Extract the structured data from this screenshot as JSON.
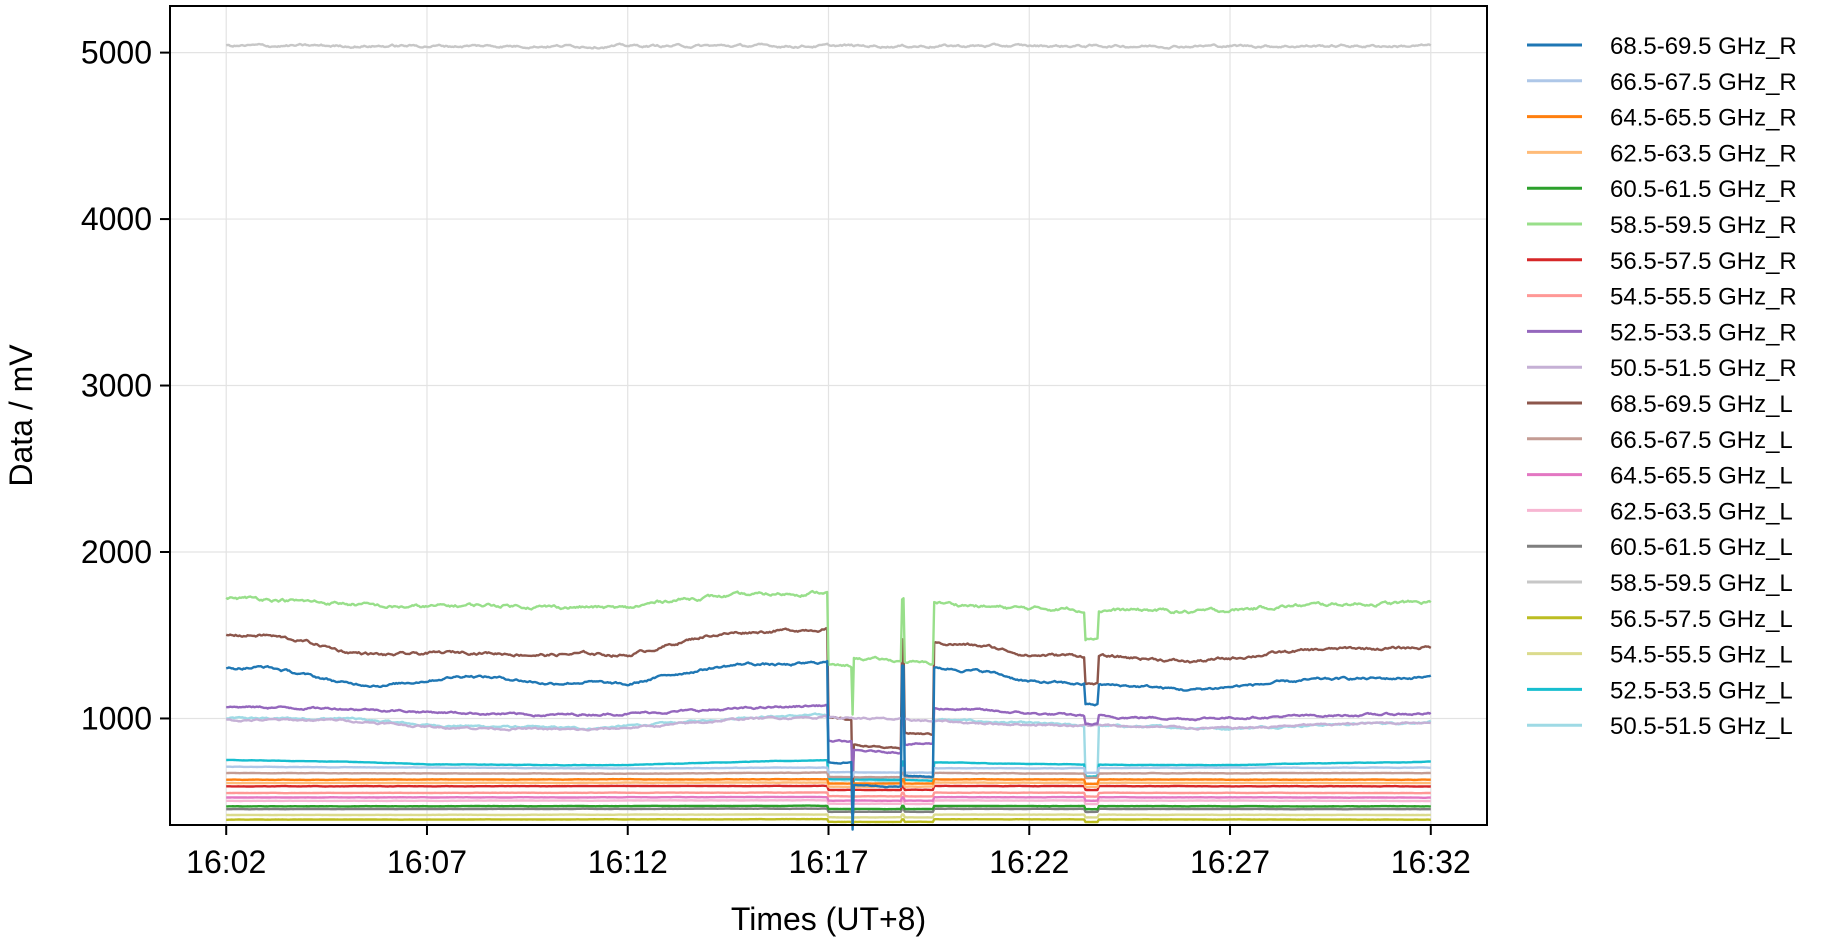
{
  "chart_data": {
    "type": "line",
    "xlabel": "Times (UT+8)",
    "ylabel": "Data / mV",
    "xlim_minutes": [
      -1.4,
      31.4
    ],
    "ylim": [
      360,
      5280
    ],
    "x_ticks": [
      {
        "label": "16:02",
        "minute": 0
      },
      {
        "label": "16:07",
        "minute": 5
      },
      {
        "label": "16:12",
        "minute": 10
      },
      {
        "label": "16:17",
        "minute": 15
      },
      {
        "label": "16:22",
        "minute": 20
      },
      {
        "label": "16:27",
        "minute": 25
      },
      {
        "label": "16:32",
        "minute": 30
      }
    ],
    "y_ticks": [
      1000,
      2000,
      3000,
      4000,
      5000
    ],
    "grid": true,
    "legend_position": "outside-right",
    "series": [
      {
        "name": "68.5-69.5 GHz_R",
        "color": "#1f77b4",
        "base": 1250,
        "dips": [
          0.55,
          0.45,
          0.5,
          0.9
        ],
        "points": [
          [
            0,
            1300
          ],
          [
            1,
            1310
          ],
          [
            2,
            1260
          ],
          [
            3,
            1210
          ],
          [
            4,
            1200
          ],
          [
            5,
            1230
          ],
          [
            6,
            1260
          ],
          [
            7,
            1240
          ],
          [
            8,
            1210
          ],
          [
            9,
            1220
          ],
          [
            10,
            1200
          ],
          [
            11,
            1260
          ],
          [
            12,
            1300
          ],
          [
            13,
            1330
          ],
          [
            14,
            1320
          ],
          [
            15,
            1340
          ],
          [
            16,
            1330
          ],
          [
            17,
            1310
          ],
          [
            18,
            1300
          ],
          [
            19,
            1280
          ],
          [
            20,
            1220
          ],
          [
            21,
            1210
          ],
          [
            22,
            1200
          ],
          [
            23,
            1190
          ],
          [
            24,
            1170
          ],
          [
            25,
            1190
          ],
          [
            26,
            1210
          ],
          [
            27,
            1230
          ],
          [
            28,
            1240
          ],
          [
            29,
            1240
          ],
          [
            30,
            1250
          ]
        ]
      },
      {
        "name": "66.5-67.5 GHz_R",
        "color": "#aec7e8",
        "base": 705,
        "points": [
          [
            0,
            710
          ],
          [
            10,
            700
          ],
          [
            15,
            705
          ],
          [
            20,
            700
          ],
          [
            25,
            705
          ],
          [
            30,
            705
          ]
        ]
      },
      {
        "name": "64.5-65.5 GHz_R",
        "color": "#ff7f0e",
        "base": 632,
        "points": [
          [
            0,
            632
          ],
          [
            15,
            635
          ],
          [
            30,
            632
          ]
        ]
      },
      {
        "name": "62.5-63.5 GHz_R",
        "color": "#ffbb78",
        "base": 612,
        "points": [
          [
            0,
            612
          ],
          [
            15,
            615
          ],
          [
            30,
            612
          ]
        ]
      },
      {
        "name": "60.5-61.5 GHz_R",
        "color": "#2ca02c",
        "base": 472,
        "points": [
          [
            0,
            472
          ],
          [
            15,
            475
          ],
          [
            30,
            472
          ]
        ]
      },
      {
        "name": "58.5-59.5 GHz_R",
        "color": "#98df8a",
        "base": 1690,
        "dips": [
          0.75,
          0.78,
          0.78,
          0.9
        ],
        "points": [
          [
            0,
            1720
          ],
          [
            1,
            1720
          ],
          [
            2,
            1700
          ],
          [
            3,
            1690
          ],
          [
            4,
            1670
          ],
          [
            5,
            1670
          ],
          [
            6,
            1680
          ],
          [
            7,
            1680
          ],
          [
            8,
            1670
          ],
          [
            9,
            1670
          ],
          [
            10,
            1660
          ],
          [
            11,
            1710
          ],
          [
            12,
            1730
          ],
          [
            13,
            1740
          ],
          [
            14,
            1750
          ],
          [
            15,
            1760
          ],
          [
            16,
            1740
          ],
          [
            17,
            1720
          ],
          [
            18,
            1690
          ],
          [
            19,
            1670
          ],
          [
            20,
            1660
          ],
          [
            21,
            1660
          ],
          [
            22,
            1650
          ],
          [
            23,
            1650
          ],
          [
            24,
            1640
          ],
          [
            25,
            1650
          ],
          [
            26,
            1670
          ],
          [
            27,
            1680
          ],
          [
            28,
            1690
          ],
          [
            29,
            1690
          ],
          [
            30,
            1700
          ]
        ]
      },
      {
        "name": "56.5-57.5 GHz_R",
        "color": "#d62728",
        "base": 592,
        "points": [
          [
            0,
            592
          ],
          [
            15,
            595
          ],
          [
            30,
            592
          ]
        ]
      },
      {
        "name": "54.5-55.5 GHz_R",
        "color": "#ff9896",
        "base": 552,
        "points": [
          [
            0,
            552
          ],
          [
            15,
            555
          ],
          [
            30,
            552
          ]
        ]
      },
      {
        "name": "52.5-53.5 GHz_R",
        "color": "#9467bd",
        "base": 1030,
        "dips": [
          0.8,
          0.75,
          0.8,
          0.95
        ],
        "points": [
          [
            0,
            1070
          ],
          [
            3,
            1060
          ],
          [
            5,
            1040
          ],
          [
            8,
            1020
          ],
          [
            10,
            1030
          ],
          [
            12,
            1050
          ],
          [
            14,
            1070
          ],
          [
            15,
            1080
          ],
          [
            17,
            1060
          ],
          [
            18,
            1060
          ],
          [
            20,
            1030
          ],
          [
            22,
            1010
          ],
          [
            24,
            1000
          ],
          [
            26,
            1010
          ],
          [
            28,
            1020
          ],
          [
            30,
            1030
          ]
        ]
      },
      {
        "name": "50.5-51.5 GHz_R",
        "color": "#c5b0d5",
        "base": 985,
        "points": [
          [
            0,
            990
          ],
          [
            3,
            990
          ],
          [
            5,
            950
          ],
          [
            7,
            940
          ],
          [
            9,
            930
          ],
          [
            11,
            960
          ],
          [
            13,
            1000
          ],
          [
            15,
            1010
          ],
          [
            17,
            990
          ],
          [
            19,
            970
          ],
          [
            21,
            960
          ],
          [
            23,
            950
          ],
          [
            25,
            940
          ],
          [
            27,
            960
          ],
          [
            30,
            980
          ]
        ]
      },
      {
        "name": "68.5-69.5 GHz_L",
        "color": "#8c564b",
        "base": 1430,
        "dips": [
          0.65,
          0.55,
          0.62,
          0.88
        ],
        "points": [
          [
            0,
            1500
          ],
          [
            1,
            1500
          ],
          [
            2,
            1460
          ],
          [
            3,
            1400
          ],
          [
            4,
            1380
          ],
          [
            5,
            1390
          ],
          [
            6,
            1400
          ],
          [
            7,
            1390
          ],
          [
            8,
            1380
          ],
          [
            9,
            1390
          ],
          [
            10,
            1380
          ],
          [
            11,
            1440
          ],
          [
            12,
            1500
          ],
          [
            13,
            1520
          ],
          [
            14,
            1530
          ],
          [
            15,
            1540
          ],
          [
            16,
            1520
          ],
          [
            17,
            1470
          ],
          [
            18,
            1450
          ],
          [
            19,
            1430
          ],
          [
            20,
            1380
          ],
          [
            21,
            1380
          ],
          [
            22,
            1370
          ],
          [
            23,
            1360
          ],
          [
            24,
            1340
          ],
          [
            25,
            1360
          ],
          [
            26,
            1390
          ],
          [
            27,
            1410
          ],
          [
            28,
            1420
          ],
          [
            29,
            1420
          ],
          [
            30,
            1430
          ]
        ]
      },
      {
        "name": "66.5-67.5 GHz_L",
        "color": "#c49c94",
        "base": 672,
        "points": [
          [
            0,
            672
          ],
          [
            10,
            668
          ],
          [
            15,
            675
          ],
          [
            20,
            670
          ],
          [
            30,
            672
          ]
        ]
      },
      {
        "name": "64.5-65.5 GHz_L",
        "color": "#e377c2",
        "base": 525,
        "points": [
          [
            0,
            525
          ],
          [
            15,
            528
          ],
          [
            30,
            525
          ]
        ]
      },
      {
        "name": "62.5-63.5 GHz_L",
        "color": "#f7b6d2",
        "base": 505,
        "points": [
          [
            0,
            505
          ],
          [
            15,
            508
          ],
          [
            30,
            505
          ]
        ]
      },
      {
        "name": "60.5-61.5 GHz_L",
        "color": "#7f7f7f",
        "base": 455,
        "points": [
          [
            0,
            455
          ],
          [
            15,
            458
          ],
          [
            30,
            455
          ]
        ]
      },
      {
        "name": "58.5-59.5 GHz_L",
        "color": "#c7c7c7",
        "base": 5040,
        "points": [
          [
            0,
            5040
          ],
          [
            30,
            5040
          ]
        ]
      },
      {
        "name": "56.5-57.5 GHz_L",
        "color": "#bcbd22",
        "base": 392,
        "points": [
          [
            0,
            392
          ],
          [
            15,
            395
          ],
          [
            30,
            392
          ]
        ]
      },
      {
        "name": "54.5-55.5 GHz_L",
        "color": "#dbdb8d",
        "base": 420,
        "points": [
          [
            0,
            420
          ],
          [
            15,
            423
          ],
          [
            30,
            420
          ]
        ]
      },
      {
        "name": "52.5-53.5 GHz_L",
        "color": "#17becf",
        "base": 740,
        "dips": [
          0.85,
          0.85,
          0.85,
          0.9
        ],
        "points": [
          [
            0,
            750
          ],
          [
            3,
            740
          ],
          [
            5,
            725
          ],
          [
            8,
            720
          ],
          [
            10,
            720
          ],
          [
            12,
            735
          ],
          [
            14,
            745
          ],
          [
            15,
            750
          ],
          [
            17,
            740
          ],
          [
            19,
            730
          ],
          [
            21,
            725
          ],
          [
            23,
            720
          ],
          [
            25,
            720
          ],
          [
            27,
            730
          ],
          [
            30,
            740
          ]
        ]
      },
      {
        "name": "50.5-51.5 GHz_L",
        "color": "#9edae5",
        "base": 980,
        "dips": [
          0.62,
          0.62,
          0.65,
          0.68
        ],
        "points": [
          [
            0,
            1000
          ],
          [
            3,
            1000
          ],
          [
            5,
            960
          ],
          [
            7,
            950
          ],
          [
            9,
            940
          ],
          [
            11,
            970
          ],
          [
            13,
            1010
          ],
          [
            15,
            1020
          ],
          [
            17,
            1000
          ],
          [
            19,
            980
          ],
          [
            21,
            960
          ],
          [
            23,
            950
          ],
          [
            25,
            940
          ],
          [
            27,
            960
          ],
          [
            30,
            980
          ]
        ]
      }
    ],
    "dip_intervals_minutes": [
      [
        15.0,
        15.6
      ],
      [
        15.6,
        16.8
      ],
      [
        16.9,
        17.6
      ],
      [
        21.4,
        21.7
      ]
    ]
  }
}
